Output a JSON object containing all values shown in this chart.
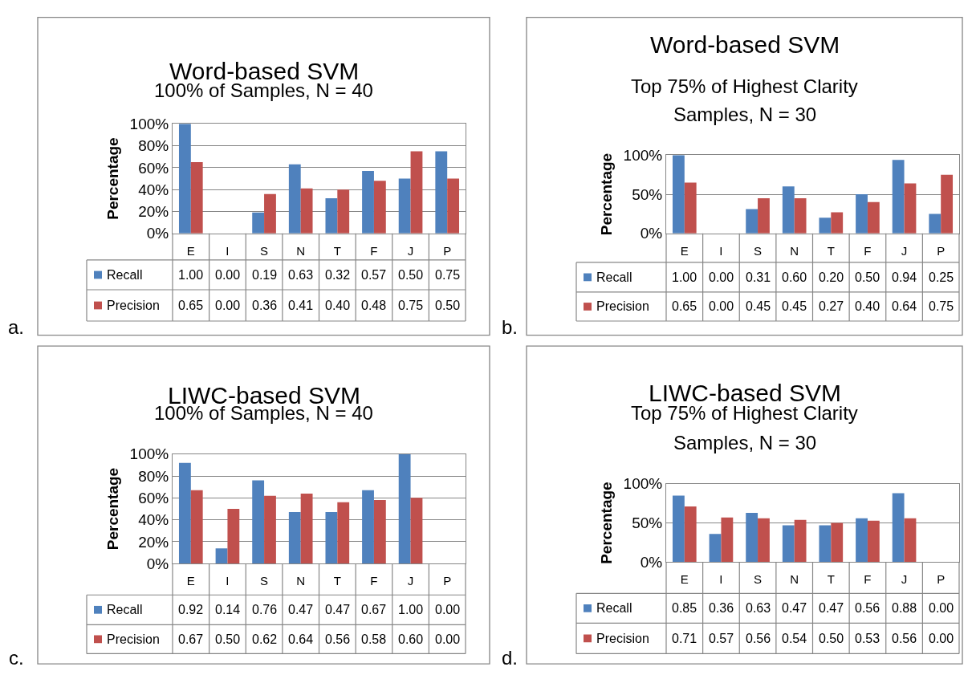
{
  "chart_data": [
    {
      "type": "bar",
      "title": "Word-based SVM",
      "subtitle": "100% of Samples, N = 40",
      "ylabel": "Percentage",
      "categories": [
        "E",
        "I",
        "S",
        "N",
        "T",
        "F",
        "J",
        "P"
      ],
      "ylim": [
        0,
        1
      ],
      "yticks": [
        {
          "value": 0,
          "label": "0%"
        },
        {
          "value": 0.2,
          "label": "20%"
        },
        {
          "value": 0.4,
          "label": "40%"
        },
        {
          "value": 0.6,
          "label": "60%"
        },
        {
          "value": 0.8,
          "label": "80%"
        },
        {
          "value": 1,
          "label": "100%"
        }
      ],
      "grid": "y",
      "legend": "bottom",
      "annotations": [
        "a."
      ],
      "series": [
        {
          "name": "Recall",
          "color": "#4f81bd",
          "values": [
            1.0,
            0.0,
            0.19,
            0.63,
            0.32,
            0.57,
            0.5,
            0.75
          ],
          "value_labels": [
            "1.00",
            "0.00",
            "0.19",
            "0.63",
            "0.32",
            "0.57",
            "0.50",
            "0.75"
          ]
        },
        {
          "name": "Precision",
          "color": "#c0504d",
          "values": [
            0.65,
            0.0,
            0.36,
            0.41,
            0.4,
            0.48,
            0.75,
            0.5
          ],
          "value_labels": [
            "0.65",
            "0.00",
            "0.36",
            "0.41",
            "0.40",
            "0.48",
            "0.75",
            "0.50"
          ]
        }
      ]
    },
    {
      "type": "bar",
      "title": "Word-based SVM",
      "subtitle": "Top 75% of Highest Clarity\nSamples, N = 30",
      "ylabel": "Percentage",
      "categories": [
        "E",
        "I",
        "S",
        "N",
        "T",
        "F",
        "J",
        "P"
      ],
      "ylim": [
        0,
        1
      ],
      "yticks": [
        {
          "value": 0,
          "label": "0%"
        },
        {
          "value": 0.5,
          "label": "50%"
        },
        {
          "value": 1,
          "label": "100%"
        }
      ],
      "grid": "y",
      "legend": "bottom",
      "annotations": [
        "b."
      ],
      "series": [
        {
          "name": "Recall",
          "color": "#4f81bd",
          "values": [
            1.0,
            0.0,
            0.31,
            0.6,
            0.2,
            0.5,
            0.94,
            0.25
          ],
          "value_labels": [
            "1.00",
            "0.00",
            "0.31",
            "0.60",
            "0.20",
            "0.50",
            "0.94",
            "0.25"
          ]
        },
        {
          "name": "Precision",
          "color": "#c0504d",
          "values": [
            0.65,
            0.0,
            0.45,
            0.45,
            0.27,
            0.4,
            0.64,
            0.75
          ],
          "value_labels": [
            "0.65",
            "0.00",
            "0.45",
            "0.45",
            "0.27",
            "0.40",
            "0.64",
            "0.75"
          ]
        }
      ]
    },
    {
      "type": "bar",
      "title": "LIWC-based SVM",
      "subtitle": "100% of Samples, N = 40",
      "ylabel": "Percentage",
      "categories": [
        "E",
        "I",
        "S",
        "N",
        "T",
        "F",
        "J",
        "P"
      ],
      "ylim": [
        0,
        1
      ],
      "yticks": [
        {
          "value": 0,
          "label": "0%"
        },
        {
          "value": 0.2,
          "label": "20%"
        },
        {
          "value": 0.4,
          "label": "40%"
        },
        {
          "value": 0.6,
          "label": "60%"
        },
        {
          "value": 0.8,
          "label": "80%"
        },
        {
          "value": 1,
          "label": "100%"
        }
      ],
      "grid": "y",
      "legend": "bottom",
      "annotations": [
        "c."
      ],
      "series": [
        {
          "name": "Recall",
          "color": "#4f81bd",
          "values": [
            0.92,
            0.14,
            0.76,
            0.47,
            0.47,
            0.67,
            1.0,
            0.0
          ],
          "value_labels": [
            "0.92",
            "0.14",
            "0.76",
            "0.47",
            "0.47",
            "0.67",
            "1.00",
            "0.00"
          ]
        },
        {
          "name": "Precision",
          "color": "#c0504d",
          "values": [
            0.67,
            0.5,
            0.62,
            0.64,
            0.56,
            0.58,
            0.6,
            0.0
          ],
          "value_labels": [
            "0.67",
            "0.50",
            "0.62",
            "0.64",
            "0.56",
            "0.58",
            "0.60",
            "0.00"
          ]
        }
      ]
    },
    {
      "type": "bar",
      "title": "LIWC-based SVM",
      "subtitle": "Top 75% of Highest Clarity\nSamples, N = 30",
      "ylabel": "Percentage",
      "categories": [
        "E",
        "I",
        "S",
        "N",
        "T",
        "F",
        "J",
        "P"
      ],
      "ylim": [
        0,
        1
      ],
      "yticks": [
        {
          "value": 0,
          "label": "0%"
        },
        {
          "value": 0.5,
          "label": "50%"
        },
        {
          "value": 1,
          "label": "100%"
        }
      ],
      "grid": "y",
      "legend": "bottom",
      "annotations": [
        "d."
      ],
      "series": [
        {
          "name": "Recall",
          "color": "#4f81bd",
          "values": [
            0.85,
            0.36,
            0.63,
            0.47,
            0.47,
            0.56,
            0.88,
            0.0
          ],
          "value_labels": [
            "0.85",
            "0.36",
            "0.63",
            "0.47",
            "0.47",
            "0.56",
            "0.88",
            "0.00"
          ]
        },
        {
          "name": "Precision",
          "color": "#c0504d",
          "values": [
            0.71,
            0.57,
            0.56,
            0.54,
            0.5,
            0.53,
            0.56,
            0.0
          ],
          "value_labels": [
            "0.71",
            "0.57",
            "0.56",
            "0.54",
            "0.50",
            "0.53",
            "0.56",
            "0.00"
          ]
        }
      ]
    }
  ]
}
